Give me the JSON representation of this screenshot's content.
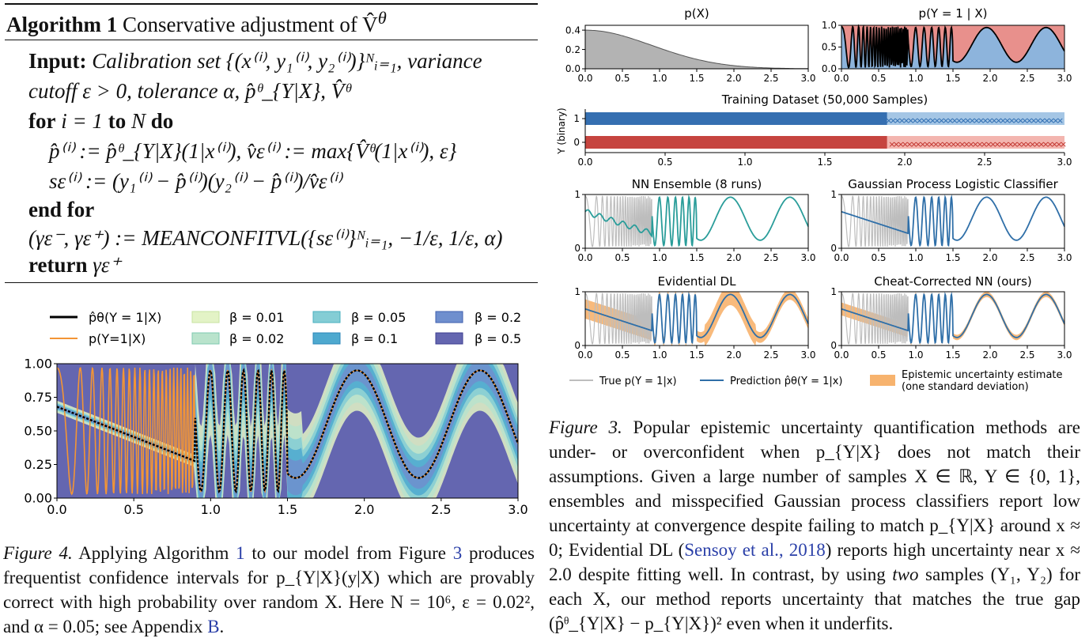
{
  "algorithm": {
    "title_bold": "Algorithm 1",
    "title_rest": "Conservative adjustment of V̂",
    "title_sup": "θ",
    "lines": [
      {
        "kw": "Input:",
        "text": " Calibration set {(x⁽ⁱ⁾, y₁⁽ⁱ⁾, y₂⁽ⁱ⁾)}ᴺᵢ₌₁, variance"
      },
      {
        "kw": "",
        "text": "cutoff ε > 0, tolerance α, p̂ᶿ_{Y|X}, V̂ᶿ"
      },
      {
        "kw": "for",
        "text": " i = 1 ",
        "kw2": "to",
        "text2": " N ",
        "kw3": "do"
      },
      {
        "kw": "",
        "text": "p̂⁽ⁱ⁾ := p̂ᶿ_{Y|X}(1|x⁽ⁱ⁾),   v̂ε⁽ⁱ⁾ := max{V̂ᶿ(1|x⁽ⁱ⁾), ε}"
      },
      {
        "kw": "",
        "text": "sε⁽ⁱ⁾ := (y₁⁽ⁱ⁾ − p̂⁽ⁱ⁾)(y₂⁽ⁱ⁾ − p̂⁽ⁱ⁾)/v̂ε⁽ⁱ⁾"
      },
      {
        "kw": "end for",
        "text": ""
      },
      {
        "kw": "",
        "text": "(γε⁻, γε⁺) := MEANCONFITVL({sε⁽ⁱ⁾}ᴺᵢ₌₁, −1/ε, 1/ε, α)"
      },
      {
        "kw": "return",
        "text": " γε⁺"
      }
    ]
  },
  "figure4": {
    "legend": {
      "line1": "p̂θ(Y = 1|X)",
      "line2": "p(Y=1|X)",
      "betas": [
        "β = 0.01",
        "β = 0.02",
        "β = 0.05",
        "β = 0.1",
        "β = 0.2",
        "β = 0.5"
      ]
    },
    "xticks": [
      "0.0",
      "0.5",
      "1.0",
      "1.5",
      "2.0",
      "2.5",
      "3.0"
    ],
    "yticks": [
      "0.00",
      "0.25",
      "0.50",
      "0.75",
      "1.00"
    ],
    "caption_lead": "Figure 4.",
    "caption_body": " Applying Algorithm ",
    "caption_ref1": "1",
    "caption_body2": " to our model from Figure ",
    "caption_ref2": "3",
    "caption_body3": " produces frequentist confidence intervals for p_{Y|X}(y|X) which are provably correct with high probability over random X. Here N = 10⁶, ε = 0.02², and α = 0.05; see Appendix ",
    "caption_ref3": "B",
    "caption_end": "."
  },
  "figure3": {
    "panels": {
      "px_title": "p(X)",
      "pyx_title": "p(Y = 1 | X)",
      "train_title": "Training Dataset (50,000 Samples)",
      "train_ylabel": "Y (binary)",
      "ens_title": "NN Ensemble (8 runs)",
      "gp_title": "Gaussian Process Logistic Classifier",
      "edl_title": "Evidential DL",
      "ccnn_title": "Cheat-Corrected NN (ours)"
    },
    "px_yticks": [
      "0.0",
      "0.2",
      "0.4"
    ],
    "pyx_yticks": [
      "0.0",
      "0.5",
      "1.0"
    ],
    "xticks": [
      "0.0",
      "0.5",
      "1.0",
      "1.5",
      "2.0",
      "2.5",
      "3.0"
    ],
    "small_yticks": [
      "0",
      "1"
    ],
    "legend": {
      "true": "True p(Y = 1|x)",
      "pred": "Prediction p̂θ(Y = 1|x)",
      "unc1": "Epistemic uncertainty estimate",
      "unc2": "(one standard deviation)"
    },
    "caption_lead": "Figure 3.",
    "caption_text1": " Popular epistemic uncertainty quantification methods are under- or overconfident when p_{Y|X} does not match their assumptions. Given a large number of samples X ∈ ℝ, Y ∈ {0, 1}, ensembles and misspecified Gaussian process classifiers report low uncertainty at convergence despite failing to match p_{Y|X} around x ≈ 0; Evidential DL (",
    "caption_cite": "Sensoy et al., 2018",
    "caption_text2": ") reports high uncertainty near x ≈ 2.0 despite fitting well. In contrast, by using ",
    "caption_two": "two",
    "caption_text3": " samples (Y₁, Y₂) for each X, our method reports uncertainty that matches the true gap (p̂ᶿ_{Y|X} − p_{Y|X})² even when it underfits."
  },
  "colors": {
    "gray_fill": "#b3b3b3",
    "red_fill": "#e8908c",
    "blue_fill": "#8db4dc",
    "ensemble": "#2a9d9a",
    "pred_blue": "#2f6fa8",
    "orange": "#f7b36e",
    "orange_line": "#f39535"
  }
}
